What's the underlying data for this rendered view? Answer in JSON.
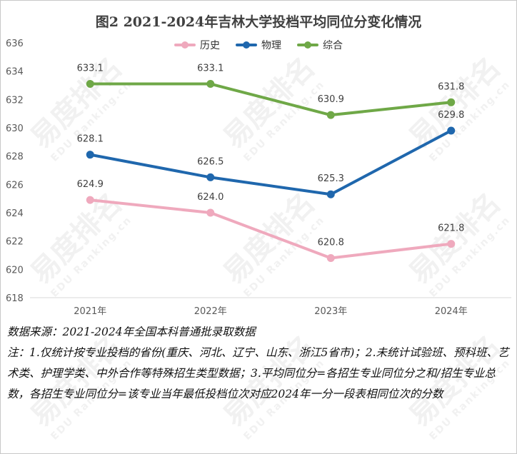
{
  "title": "图2 2021-2024年吉林大学投档平均同位分变化情况",
  "legend": [
    {
      "name": "历史",
      "color": "#efa9bd"
    },
    {
      "name": "物理",
      "color": "#1f67ad"
    },
    {
      "name": "综合",
      "color": "#6fa847"
    }
  ],
  "chart_data": {
    "type": "line",
    "title": "图2 2021-2024年吉林大学投档平均同位分变化情况",
    "categories": [
      "2021年",
      "2022年",
      "2023年",
      "2024年"
    ],
    "ylim": [
      618,
      636
    ],
    "yticks": [
      618,
      620,
      622,
      624,
      626,
      628,
      630,
      632,
      634,
      636
    ],
    "grid": false,
    "legend_position": "top",
    "series": [
      {
        "name": "历史",
        "color": "#efa9bd",
        "values": [
          624.9,
          624.0,
          620.8,
          621.8
        ],
        "labels": [
          "624.9",
          "624.0",
          "620.8",
          "621.8"
        ]
      },
      {
        "name": "物理",
        "color": "#1f67ad",
        "values": [
          628.1,
          626.5,
          625.3,
          629.8
        ],
        "labels": [
          "628.1",
          "626.5",
          "625.3",
          "629.8"
        ]
      },
      {
        "name": "综合",
        "color": "#6fa847",
        "values": [
          633.1,
          633.1,
          630.9,
          631.8
        ],
        "labels": [
          "633.1",
          "633.1",
          "630.9",
          "631.8"
        ]
      }
    ]
  },
  "notes": {
    "source": "数据来源：2021-2024年全国本科普通批录取数据",
    "note": "注：1.仅统计按专业投档的省份(重庆、河北、辽宁、山东、浙江5省市)；2.未统计试验班、预科班、艺术类、护理学类、中外合作等特殊招生类型数据；3.平均同位分=各招生专业同位分之和/招生专业总数，各招生专业同位分=该专业当年最低投档位次对应2024年一分一段表相同位次的分数"
  },
  "watermark": {
    "text": "易度排名",
    "sub": "EDU Ranking.cn"
  }
}
